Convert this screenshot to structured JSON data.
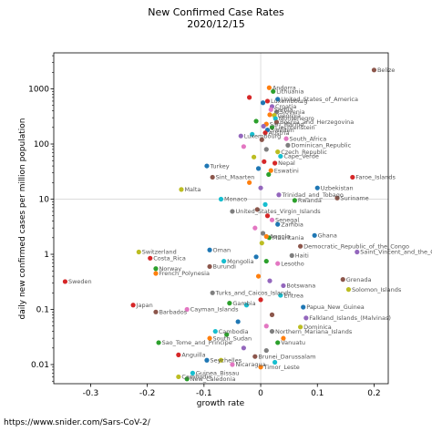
{
  "chart_data": {
    "type": "scatter",
    "title": "New Confirmed Case Rates",
    "subtitle": "2020/12/15",
    "xlabel": "growth rate",
    "ylabel": "daily new confirmed cases per million population",
    "x_scale": "linear",
    "y_scale": "log",
    "xlim": [
      -0.365,
      0.225
    ],
    "ylim": [
      0.0045,
      4500
    ],
    "x_ticks": [
      -0.3,
      -0.2,
      -0.1,
      0,
      0.1,
      0.2
    ],
    "x_tick_labels": [
      "-0.3",
      "-0.2",
      "-0.1",
      "0",
      "0.1",
      "0.2"
    ],
    "y_ticks": [
      0.01,
      0.1,
      1,
      10,
      100,
      1000
    ],
    "y_tick_labels": [
      "0.01",
      "0.1",
      "1",
      "10",
      "100",
      "1000"
    ],
    "reference_lines": {
      "x": 0,
      "y": 10
    },
    "grid": false,
    "points": [
      {
        "label": "Belize",
        "x": 0.2,
        "y": 2200,
        "color": "#8c564b"
      },
      {
        "label": "Andorra",
        "x": 0.015,
        "y": 1050,
        "color": "#ff7f0e"
      },
      {
        "label": "Lithuania",
        "x": 0.022,
        "y": 900,
        "color": "#2ca02c"
      },
      {
        "label": "United_States_of_America",
        "x": 0.03,
        "y": 650,
        "color": "#1f77b4"
      },
      {
        "label": "Luxembourg",
        "x": 0.012,
        "y": 600,
        "color": "#d62728"
      },
      {
        "label": "Croatia",
        "x": 0.02,
        "y": 480,
        "color": "#9467bd"
      },
      {
        "label": "Serbia",
        "x": 0.018,
        "y": 420,
        "color": "#e377c2"
      },
      {
        "label": "Slovenia",
        "x": 0.028,
        "y": 380,
        "color": "#7f7f7f"
      },
      {
        "label": "Georgia",
        "x": 0.024,
        "y": 330,
        "color": "#bcbd22"
      },
      {
        "label": "Montenegro",
        "x": 0.026,
        "y": 290,
        "color": "#17becf"
      },
      {
        "label": "Bosnia_and_Herzegovina",
        "x": 0.028,
        "y": 250,
        "color": "#8c564b"
      },
      {
        "label": "San_Marino",
        "x": 0.01,
        "y": 230,
        "color": "#ff7f0e"
      },
      {
        "label": "Liechtenstein",
        "x": 0.02,
        "y": 200,
        "color": "#2ca02c"
      },
      {
        "label": "Sweden",
        "x": 0.012,
        "y": 180,
        "color": "#1f77b4"
      },
      {
        "label": "Austria",
        "x": 0.008,
        "y": 160,
        "color": "#d62728"
      },
      {
        "label": "Luxembourg",
        "x": -0.035,
        "y": 140,
        "color": "#9467bd"
      },
      {
        "label": "South_Africa",
        "x": 0.045,
        "y": 125,
        "color": "#e377c2"
      },
      {
        "label": "Dominican_Republic",
        "x": 0.048,
        "y": 95,
        "color": "#7f7f7f"
      },
      {
        "label": "Czech_Republic",
        "x": 0.03,
        "y": 72,
        "color": "#bcbd22"
      },
      {
        "label": "Cape_Verde",
        "x": 0.035,
        "y": 60,
        "color": "#17becf"
      },
      {
        "label": "Nepal",
        "x": 0.025,
        "y": 45,
        "color": "#d62728"
      },
      {
        "label": "Turkey",
        "x": -0.095,
        "y": 40,
        "color": "#1f77b4"
      },
      {
        "label": "Sint_Maarten",
        "x": -0.085,
        "y": 25,
        "color": "#8c564b"
      },
      {
        "label": "Eswatini",
        "x": 0.018,
        "y": 33,
        "color": "#ff7f0e"
      },
      {
        "label": "Faroe_Islands",
        "x": 0.162,
        "y": 25,
        "color": "#d62728"
      },
      {
        "label": "Uzbekistan",
        "x": 0.1,
        "y": 16,
        "color": "#1f77b4"
      },
      {
        "label": "Suriname",
        "x": 0.135,
        "y": 10.5,
        "color": "#8c564b"
      },
      {
        "label": "Rwanda",
        "x": 0.06,
        "y": 9.5,
        "color": "#2ca02c"
      },
      {
        "label": "Trinidad_and_Tobago",
        "x": 0.032,
        "y": 12,
        "color": "#9467bd"
      },
      {
        "label": "Malta",
        "x": -0.14,
        "y": 15,
        "color": "#bcbd22"
      },
      {
        "label": "Monaco",
        "x": -0.07,
        "y": 10,
        "color": "#17becf"
      },
      {
        "label": "United_States_Virgin_Islands",
        "x": -0.05,
        "y": 6,
        "color": "#7f7f7f"
      },
      {
        "label": "Senegal",
        "x": 0.02,
        "y": 4.2,
        "color": "#e377c2"
      },
      {
        "label": "Zambia",
        "x": 0.03,
        "y": 3.5,
        "color": "#1f77b4"
      },
      {
        "label": "Ghana",
        "x": 0.095,
        "y": 2.2,
        "color": "#1f77b4"
      },
      {
        "label": "Mauritania",
        "x": 0.015,
        "y": 2.0,
        "color": "#2ca02c"
      },
      {
        "label": "Angola",
        "x": 0.01,
        "y": 2.1,
        "color": "#ff7f0e"
      },
      {
        "label": "Democratic_Republic_of_the_Congo",
        "x": 0.07,
        "y": 1.4,
        "color": "#8c564b"
      },
      {
        "label": "Saint_Vincent_and_the_Grenadines",
        "x": 0.17,
        "y": 1.1,
        "color": "#9467bd"
      },
      {
        "label": "Switzerland",
        "x": -0.215,
        "y": 1.1,
        "color": "#bcbd22"
      },
      {
        "label": "Costa_Rica",
        "x": -0.195,
        "y": 0.85,
        "color": "#d62728"
      },
      {
        "label": "Oman",
        "x": -0.09,
        "y": 1.2,
        "color": "#1f77b4"
      },
      {
        "label": "Mongolia",
        "x": -0.065,
        "y": 0.75,
        "color": "#17becf"
      },
      {
        "label": "Haiti",
        "x": 0.055,
        "y": 0.95,
        "color": "#7f7f7f"
      },
      {
        "label": "Lesotho",
        "x": 0.03,
        "y": 0.68,
        "color": "#e377c2"
      },
      {
        "label": "Norway",
        "x": -0.185,
        "y": 0.55,
        "color": "#2ca02c"
      },
      {
        "label": "French_Polynesia",
        "x": -0.185,
        "y": 0.45,
        "color": "#ff7f0e"
      },
      {
        "label": "Burundi",
        "x": -0.09,
        "y": 0.6,
        "color": "#8c564b"
      },
      {
        "label": "Sweden",
        "x": -0.345,
        "y": 0.32,
        "color": "#d62728"
      },
      {
        "label": "Botswana",
        "x": 0.04,
        "y": 0.27,
        "color": "#9467bd"
      },
      {
        "label": "Grenada",
        "x": 0.145,
        "y": 0.35,
        "color": "#8c564b"
      },
      {
        "label": "Solomon_Islands",
        "x": 0.155,
        "y": 0.23,
        "color": "#bcbd22"
      },
      {
        "label": "Turks_and_Caicos_Islands",
        "x": -0.085,
        "y": 0.2,
        "color": "#7f7f7f"
      },
      {
        "label": "Eritrea",
        "x": 0.035,
        "y": 0.18,
        "color": "#17becf"
      },
      {
        "label": "Gambia",
        "x": -0.055,
        "y": 0.13,
        "color": "#2ca02c"
      },
      {
        "label": "Japan",
        "x": -0.225,
        "y": 0.12,
        "color": "#d62728"
      },
      {
        "label": "Barbados",
        "x": -0.185,
        "y": 0.09,
        "color": "#8c564b"
      },
      {
        "label": "Cayman_Islands",
        "x": -0.13,
        "y": 0.1,
        "color": "#e377c2"
      },
      {
        "label": "Papua_New_Guinea",
        "x": 0.075,
        "y": 0.11,
        "color": "#1f77b4"
      },
      {
        "label": "Falkland_Islands_(Malvinas)",
        "x": 0.08,
        "y": 0.07,
        "color": "#9467bd"
      },
      {
        "label": "Dominica",
        "x": 0.07,
        "y": 0.048,
        "color": "#bcbd22"
      },
      {
        "label": "Sao_Tome_and_Principe",
        "x": -0.18,
        "y": 0.025,
        "color": "#2ca02c"
      },
      {
        "label": "South_Sudan",
        "x": -0.09,
        "y": 0.03,
        "color": "#ff7f0e"
      },
      {
        "label": "Cambodia",
        "x": -0.08,
        "y": 0.04,
        "color": "#17becf"
      },
      {
        "label": "Northern_Mariana_Islands",
        "x": 0.02,
        "y": 0.04,
        "color": "#7f7f7f"
      },
      {
        "label": "Vanuatu",
        "x": 0.03,
        "y": 0.025,
        "color": "#2ca02c"
      },
      {
        "label": "Anguilla",
        "x": -0.145,
        "y": 0.015,
        "color": "#d62728"
      },
      {
        "label": "Seychelles",
        "x": -0.095,
        "y": 0.012,
        "color": "#1f77b4"
      },
      {
        "label": "Nicaragua",
        "x": -0.05,
        "y": 0.01,
        "color": "#e377c2"
      },
      {
        "label": "Brunei_Darussalam",
        "x": -0.01,
        "y": 0.014,
        "color": "#8c564b"
      },
      {
        "label": "Timor_Leste",
        "x": 0.0,
        "y": 0.009,
        "color": "#ff7f0e"
      },
      {
        "label": "Guinea_Bissau",
        "x": -0.12,
        "y": 0.007,
        "color": "#17becf"
      },
      {
        "label": "New_Caledonia",
        "x": -0.13,
        "y": 0.0055,
        "color": "#2ca02c"
      },
      {
        "label": "Cambodia",
        "x": -0.145,
        "y": 0.006,
        "color": "#bcbd22"
      },
      {
        "label": "",
        "x": -0.02,
        "y": 700,
        "color": "#d62728"
      },
      {
        "label": "",
        "x": 0.004,
        "y": 560,
        "color": "#1f77b4"
      },
      {
        "label": "",
        "x": 0.016,
        "y": 340,
        "color": "#ff7f0e"
      },
      {
        "label": "",
        "x": -0.008,
        "y": 260,
        "color": "#2ca02c"
      },
      {
        "label": "",
        "x": 0.005,
        "y": 210,
        "color": "#9467bd"
      },
      {
        "label": "",
        "x": -0.015,
        "y": 150,
        "color": "#17becf"
      },
      {
        "label": "",
        "x": 0.002,
        "y": 120,
        "color": "#8c564b"
      },
      {
        "label": "",
        "x": -0.03,
        "y": 90,
        "color": "#e377c2"
      },
      {
        "label": "",
        "x": 0.01,
        "y": 80,
        "color": "#7f7f7f"
      },
      {
        "label": "",
        "x": -0.012,
        "y": 58,
        "color": "#bcbd22"
      },
      {
        "label": "",
        "x": 0.006,
        "y": 48,
        "color": "#d62728"
      },
      {
        "label": "",
        "x": -0.004,
        "y": 36,
        "color": "#1f77b4"
      },
      {
        "label": "",
        "x": 0.014,
        "y": 28,
        "color": "#2ca02c"
      },
      {
        "label": "",
        "x": -0.02,
        "y": 20,
        "color": "#ff7f0e"
      },
      {
        "label": "",
        "x": 0.0,
        "y": 16,
        "color": "#9467bd"
      },
      {
        "label": "",
        "x": 0.008,
        "y": 8,
        "color": "#17becf"
      },
      {
        "label": "",
        "x": -0.006,
        "y": 6.5,
        "color": "#8c564b"
      },
      {
        "label": "",
        "x": 0.012,
        "y": 5,
        "color": "#d62728"
      },
      {
        "label": "",
        "x": -0.01,
        "y": 3,
        "color": "#e377c2"
      },
      {
        "label": "",
        "x": 0.004,
        "y": 2.4,
        "color": "#7f7f7f"
      },
      {
        "label": "",
        "x": 0.002,
        "y": 1.6,
        "color": "#bcbd22"
      },
      {
        "label": "",
        "x": -0.008,
        "y": 0.9,
        "color": "#1f77b4"
      },
      {
        "label": "",
        "x": 0.01,
        "y": 0.75,
        "color": "#2ca02c"
      },
      {
        "label": "",
        "x": -0.004,
        "y": 0.4,
        "color": "#ff7f0e"
      },
      {
        "label": "",
        "x": 0.016,
        "y": 0.33,
        "color": "#9467bd"
      },
      {
        "label": "",
        "x": 0.0,
        "y": 0.15,
        "color": "#d62728"
      },
      {
        "label": "",
        "x": -0.025,
        "y": 0.12,
        "color": "#17becf"
      },
      {
        "label": "",
        "x": 0.02,
        "y": 0.08,
        "color": "#8c564b"
      },
      {
        "label": "",
        "x": -0.04,
        "y": 0.06,
        "color": "#1f77b4"
      },
      {
        "label": "",
        "x": 0.01,
        "y": 0.05,
        "color": "#e377c2"
      },
      {
        "label": "",
        "x": -0.06,
        "y": 0.035,
        "color": "#2ca02c"
      },
      {
        "label": "",
        "x": 0.04,
        "y": 0.03,
        "color": "#ff7f0e"
      },
      {
        "label": "",
        "x": -0.03,
        "y": 0.02,
        "color": "#9467bd"
      },
      {
        "label": "",
        "x": 0.01,
        "y": 0.018,
        "color": "#7f7f7f"
      },
      {
        "label": "",
        "x": -0.07,
        "y": 0.012,
        "color": "#bcbd22"
      },
      {
        "label": "",
        "x": 0.025,
        "y": 0.011,
        "color": "#17becf"
      }
    ]
  },
  "footer": {
    "url": "https://www.snider.com/Sars-CoV-2/"
  }
}
